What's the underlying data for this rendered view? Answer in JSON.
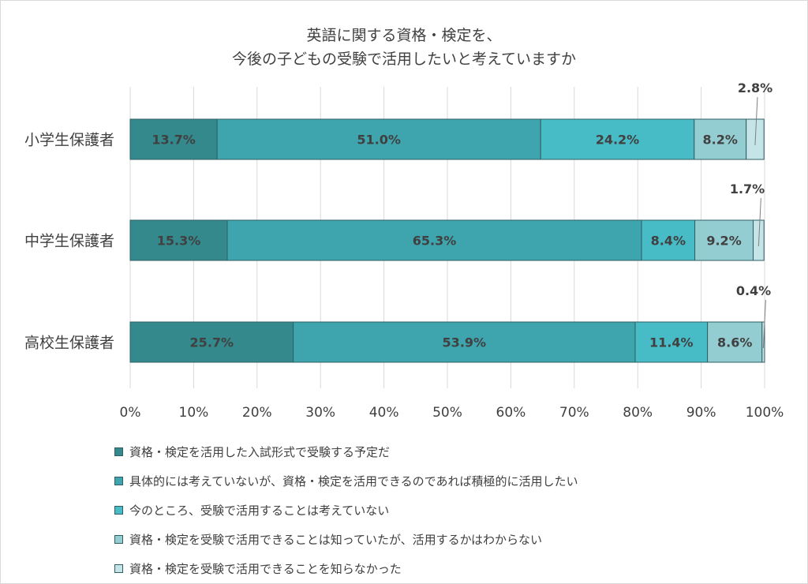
{
  "colors": {
    "grid": "#d9d9d9",
    "text": "#404040",
    "bar_stroke": "#2f5f62"
  },
  "chart_data": {
    "type": "bar",
    "orientation": "horizontal",
    "stacked": true,
    "title": [
      "英語に関する資格・検定を、",
      "今後の子どもの受験で活用したいと考えていますか"
    ],
    "categories": [
      "小学生保護者",
      "中学生保護者",
      "高校生保護者"
    ],
    "xlim": [
      0,
      100
    ],
    "x_ticks": [
      "0%",
      "10%",
      "20%",
      "30%",
      "40%",
      "50%",
      "60%",
      "70%",
      "80%",
      "90%",
      "100%"
    ],
    "grid": true,
    "legend_position": "bottom",
    "series": [
      {
        "name": "資格・検定を活用した入試形式で受験する予定だ",
        "color": "#34898c",
        "values": [
          13.7,
          15.3,
          25.7
        ]
      },
      {
        "name": "具体的には考えていないが、資格・検定を活用できるのであれば積極的に活用したい",
        "color": "#3ea4ad",
        "values": [
          51.0,
          65.3,
          53.9
        ]
      },
      {
        "name": "今のところ、受験で活用することは考えていない",
        "color": "#48bcc6",
        "values": [
          24.2,
          8.4,
          11.4
        ]
      },
      {
        "name": "資格・検定を受験で活用できることは知っていたが、活用するかはわからない",
        "color": "#93cdd2",
        "values": [
          8.2,
          9.2,
          8.6
        ]
      },
      {
        "name": "資格・検定を受験で活用できることを知らなかった",
        "color": "#c4e4e7",
        "values": [
          2.8,
          1.7,
          0.4
        ]
      }
    ]
  }
}
